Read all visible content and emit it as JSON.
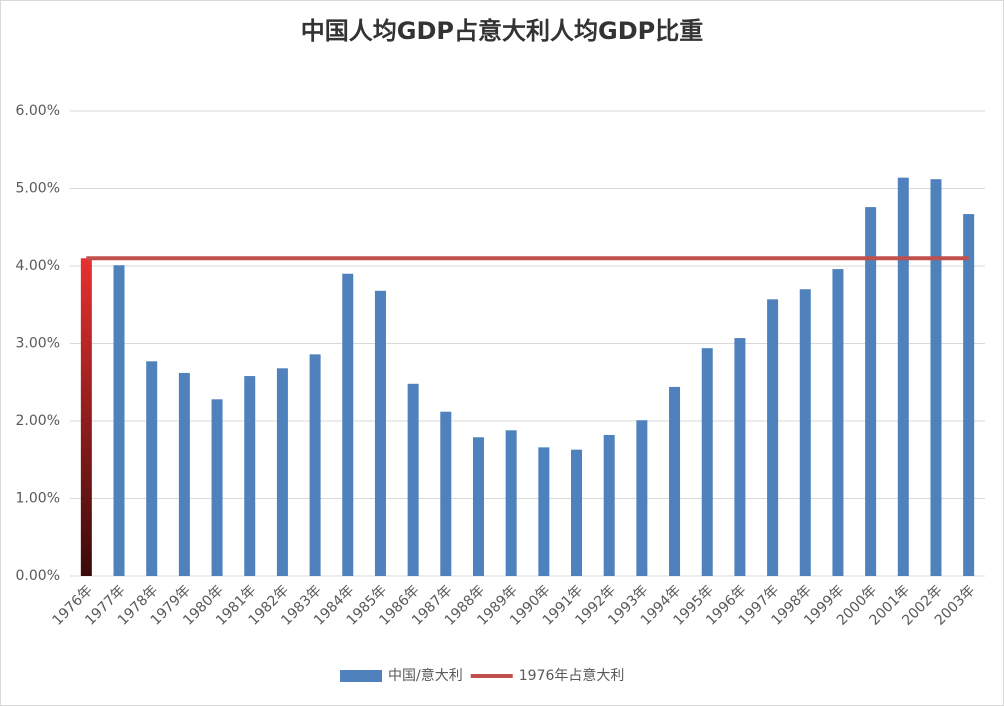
{
  "chart_data": {
    "type": "bar",
    "title": "中国人均GDP占意大利人均GDP比重",
    "categories": [
      "1976年",
      "1977年",
      "1978年",
      "1979年",
      "1980年",
      "1981年",
      "1982年",
      "1983年",
      "1984年",
      "1985年",
      "1986年",
      "1987年",
      "1988年",
      "1989年",
      "1990年",
      "1991年",
      "1992年",
      "1993年",
      "1994年",
      "1995年",
      "1996年",
      "1997年",
      "1998年",
      "1999年",
      "2000年",
      "2001年",
      "2002年",
      "2003年"
    ],
    "series": [
      {
        "name": "中国/意大利",
        "type": "bar",
        "color": "#4f81bd",
        "colors": [
          "#e83030",
          "#4f81bd",
          "#4f81bd",
          "#4f81bd",
          "#4f81bd",
          "#4f81bd",
          "#4f81bd",
          "#4f81bd",
          "#4f81bd",
          "#4f81bd",
          "#4f81bd",
          "#4f81bd",
          "#4f81bd",
          "#4f81bd",
          "#4f81bd",
          "#4f81bd",
          "#4f81bd",
          "#4f81bd",
          "#4f81bd",
          "#4f81bd",
          "#4f81bd",
          "#4f81bd",
          "#4f81bd",
          "#4f81bd",
          "#4f81bd",
          "#4f81bd",
          "#4f81bd",
          "#4f81bd"
        ],
        "values": [
          4.1,
          4.01,
          2.77,
          2.62,
          2.28,
          2.58,
          2.68,
          2.86,
          3.9,
          3.68,
          2.48,
          2.12,
          1.79,
          1.88,
          1.66,
          1.63,
          1.82,
          2.01,
          2.44,
          2.94,
          3.07,
          3.57,
          3.7,
          3.96,
          4.76,
          5.14,
          5.12,
          4.67
        ]
      },
      {
        "name": "1976年占意大利",
        "type": "line",
        "color": "#c0504d",
        "values": [
          4.1,
          4.1,
          4.1,
          4.1,
          4.1,
          4.1,
          4.1,
          4.1,
          4.1,
          4.1,
          4.1,
          4.1,
          4.1,
          4.1,
          4.1,
          4.1,
          4.1,
          4.1,
          4.1,
          4.1,
          4.1,
          4.1,
          4.1,
          4.1,
          4.1,
          4.1,
          4.1,
          4.1
        ]
      }
    ],
    "ylim": [
      0,
      6
    ],
    "yticks": [
      {
        "value": 0,
        "label": "0.00%"
      },
      {
        "value": 1,
        "label": "1.00%"
      },
      {
        "value": 2,
        "label": "2.00%"
      },
      {
        "value": 3,
        "label": "3.00%"
      },
      {
        "value": 4,
        "label": "4.00%"
      },
      {
        "value": 5,
        "label": "5.00%"
      },
      {
        "value": 6,
        "label": "6.00%"
      }
    ],
    "grid": true,
    "legend": "bottom"
  }
}
